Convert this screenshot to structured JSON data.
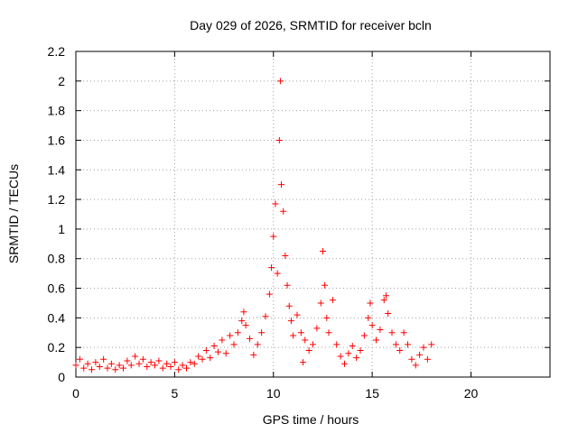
{
  "chart_data": {
    "type": "scatter",
    "title": "Day 029 of 2026, SRMTID for receiver bcln",
    "xlabel": "GPS time / hours",
    "ylabel": "SRMTID / TECUs",
    "xlim": [
      0,
      24
    ],
    "ylim": [
      0,
      2.2
    ],
    "xticks": [
      0,
      5,
      10,
      15,
      20
    ],
    "xtick_labels": [
      "0",
      "5",
      "10",
      "15",
      "20"
    ],
    "yticks": [
      0,
      0.2,
      0.4,
      0.6,
      0.8,
      1.0,
      1.2,
      1.4,
      1.6,
      1.8,
      2.0,
      2.2
    ],
    "ytick_labels": [
      "0",
      "0.2",
      "0.4",
      "0.6",
      "0.8",
      "1",
      "1.2",
      "1.4",
      "1.6",
      "1.8",
      "2",
      "2.2"
    ],
    "grid": true,
    "marker": "+",
    "color": "#ff0000",
    "series": [
      {
        "name": "SRMTID",
        "points": [
          [
            0.0,
            0.08
          ],
          [
            0.2,
            0.12
          ],
          [
            0.4,
            0.06
          ],
          [
            0.6,
            0.09
          ],
          [
            0.8,
            0.05
          ],
          [
            1.0,
            0.1
          ],
          [
            1.2,
            0.07
          ],
          [
            1.4,
            0.12
          ],
          [
            1.6,
            0.06
          ],
          [
            1.8,
            0.09
          ],
          [
            2.0,
            0.05
          ],
          [
            2.2,
            0.08
          ],
          [
            2.4,
            0.06
          ],
          [
            2.6,
            0.11
          ],
          [
            2.8,
            0.08
          ],
          [
            3.0,
            0.14
          ],
          [
            3.2,
            0.09
          ],
          [
            3.4,
            0.12
          ],
          [
            3.6,
            0.07
          ],
          [
            3.8,
            0.1
          ],
          [
            4.0,
            0.08
          ],
          [
            4.2,
            0.11
          ],
          [
            4.4,
            0.06
          ],
          [
            4.6,
            0.09
          ],
          [
            4.8,
            0.07
          ],
          [
            5.0,
            0.1
          ],
          [
            5.2,
            0.05
          ],
          [
            5.4,
            0.08
          ],
          [
            5.6,
            0.06
          ],
          [
            5.8,
            0.1
          ],
          [
            6.0,
            0.09
          ],
          [
            6.2,
            0.14
          ],
          [
            6.4,
            0.12
          ],
          [
            6.6,
            0.18
          ],
          [
            6.8,
            0.13
          ],
          [
            7.0,
            0.21
          ],
          [
            7.2,
            0.17
          ],
          [
            7.4,
            0.25
          ],
          [
            7.6,
            0.16
          ],
          [
            7.8,
            0.28
          ],
          [
            8.0,
            0.22
          ],
          [
            8.2,
            0.3
          ],
          [
            8.4,
            0.38
          ],
          [
            8.5,
            0.44
          ],
          [
            8.6,
            0.35
          ],
          [
            8.8,
            0.26
          ],
          [
            9.0,
            0.15
          ],
          [
            9.2,
            0.22
          ],
          [
            9.4,
            0.3
          ],
          [
            9.6,
            0.41
          ],
          [
            9.8,
            0.56
          ],
          [
            9.9,
            0.74
          ],
          [
            10.0,
            0.95
          ],
          [
            10.1,
            1.17
          ],
          [
            10.2,
            0.7
          ],
          [
            10.3,
            1.6
          ],
          [
            10.35,
            2.0
          ],
          [
            10.4,
            1.3
          ],
          [
            10.5,
            1.12
          ],
          [
            10.6,
            0.82
          ],
          [
            10.7,
            0.62
          ],
          [
            10.8,
            0.48
          ],
          [
            10.9,
            0.38
          ],
          [
            11.0,
            0.28
          ],
          [
            11.2,
            0.42
          ],
          [
            11.4,
            0.3
          ],
          [
            11.5,
            0.1
          ],
          [
            11.6,
            0.25
          ],
          [
            11.8,
            0.18
          ],
          [
            12.0,
            0.22
          ],
          [
            12.2,
            0.33
          ],
          [
            12.4,
            0.5
          ],
          [
            12.5,
            0.85
          ],
          [
            12.6,
            0.62
          ],
          [
            12.7,
            0.4
          ],
          [
            12.8,
            0.3
          ],
          [
            13.0,
            0.52
          ],
          [
            13.2,
            0.22
          ],
          [
            13.4,
            0.14
          ],
          [
            13.6,
            0.09
          ],
          [
            13.8,
            0.16
          ],
          [
            14.0,
            0.21
          ],
          [
            14.2,
            0.13
          ],
          [
            14.4,
            0.18
          ],
          [
            14.6,
            0.28
          ],
          [
            14.8,
            0.4
          ],
          [
            14.9,
            0.5
          ],
          [
            15.0,
            0.35
          ],
          [
            15.2,
            0.25
          ],
          [
            15.4,
            0.32
          ],
          [
            15.6,
            0.52
          ],
          [
            15.7,
            0.55
          ],
          [
            15.8,
            0.43
          ],
          [
            16.0,
            0.3
          ],
          [
            16.2,
            0.22
          ],
          [
            16.4,
            0.18
          ],
          [
            16.6,
            0.3
          ],
          [
            16.8,
            0.22
          ],
          [
            17.0,
            0.12
          ],
          [
            17.2,
            0.08
          ],
          [
            17.4,
            0.15
          ],
          [
            17.6,
            0.2
          ],
          [
            17.8,
            0.12
          ],
          [
            18.0,
            0.22
          ]
        ]
      }
    ]
  }
}
